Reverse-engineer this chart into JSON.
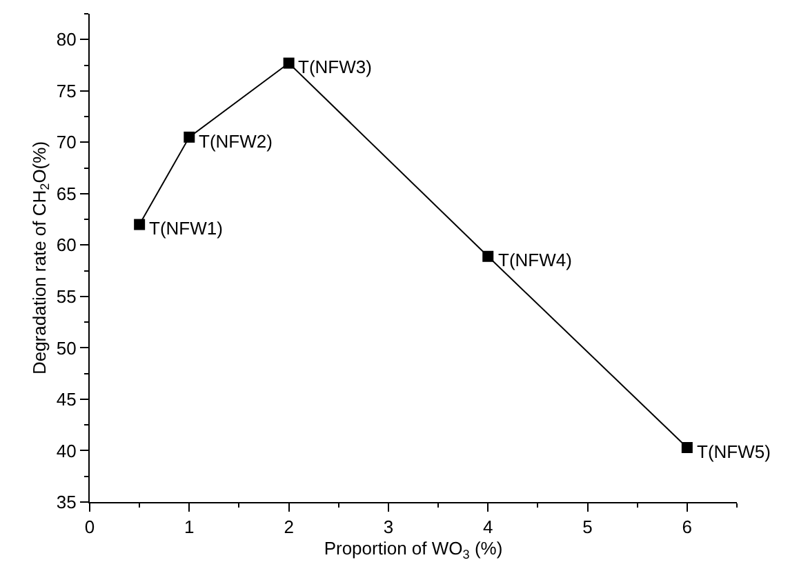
{
  "chart_data": {
    "type": "line",
    "xlabel": "Proportion of WO$_{3}$ (%)",
    "ylabel": "Degradation rate of CH$_{2}$O(%)",
    "x": [
      0.5,
      1,
      2,
      4,
      6
    ],
    "series": [
      {
        "color": "#000000",
        "values": [
          62.0,
          70.5,
          77.7,
          58.9,
          40.3
        ]
      }
    ],
    "marker": "square",
    "line_style": "solid",
    "xlim": [
      0,
      6.5
    ],
    "xticks": [
      0,
      1,
      2,
      3,
      4,
      5,
      6
    ],
    "ylim": [
      35,
      82.5
    ],
    "yticks": [
      35,
      40,
      45,
      50,
      55,
      60,
      65,
      70,
      75,
      80
    ],
    "annotations": [
      {
        "text": "T(NFW1)",
        "x": 0.5,
        "y": 62.0
      },
      {
        "text": "T(NFW2)",
        "x": 1,
        "y": 70.5
      },
      {
        "text": "T(NFW3)",
        "x": 2,
        "y": 77.7
      },
      {
        "text": "T(NFW4)",
        "x": 4,
        "y": 58.9
      },
      {
        "text": "T(NFW5)",
        "x": 6,
        "y": 40.3
      }
    ]
  }
}
